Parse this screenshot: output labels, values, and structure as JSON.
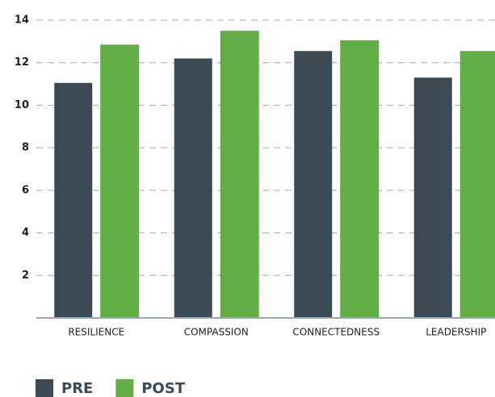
{
  "chart_data": {
    "type": "bar",
    "categories": [
      "RESILIENCE",
      "COMPASSION",
      "CONNECTEDNESS",
      "LEADERSHIP"
    ],
    "series": [
      {
        "name": "PRE",
        "color": "#3d4a54",
        "values": [
          11.05,
          12.2,
          12.55,
          11.3
        ]
      },
      {
        "name": "POST",
        "color": "#63ad47",
        "values": [
          12.85,
          13.5,
          13.05,
          12.55
        ]
      }
    ],
    "ylim": [
      0,
      14
    ],
    "yticks": [
      2,
      4,
      6,
      8,
      10,
      12,
      14
    ],
    "grid": true,
    "legend": "bottom-left"
  }
}
